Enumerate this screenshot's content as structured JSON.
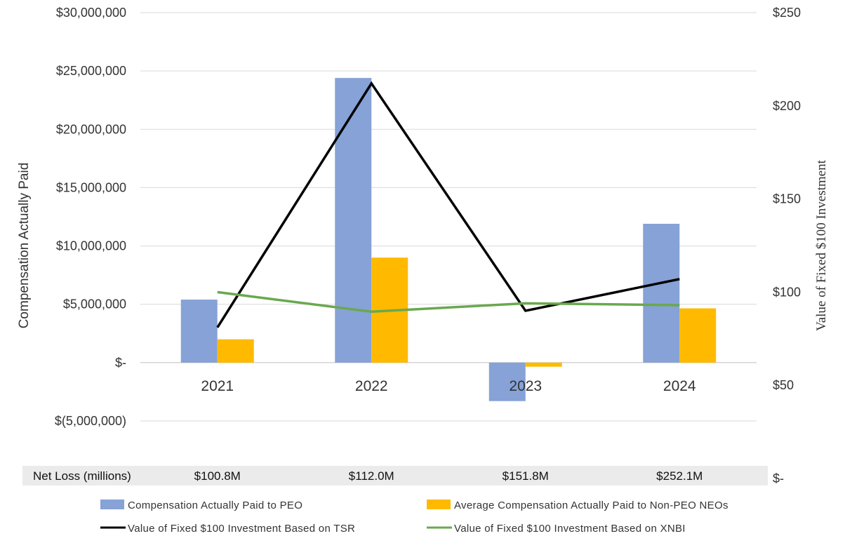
{
  "chart_data": {
    "type": "bar",
    "categories": [
      "2021",
      "2022",
      "2023",
      "2024"
    ],
    "ylabel": "Compensation Actually Paid",
    "y2label": "Value of Fixed $100 Investment",
    "ylim": [
      -5000000,
      30000000
    ],
    "y2lim": [
      0,
      250
    ],
    "y_ticks": [
      30000000,
      25000000,
      20000000,
      15000000,
      10000000,
      5000000,
      0,
      -5000000
    ],
    "y_tick_labels": [
      "$30,000,000",
      "$25,000,000",
      "$20,000,000",
      "$15,000,000",
      "$10,000,000",
      "$5,000,000",
      "$-",
      "$(5,000,000)"
    ],
    "y2_ticks": [
      250,
      200,
      150,
      100,
      50,
      0
    ],
    "y2_tick_labels": [
      "$250",
      "$200",
      "$150",
      "$100",
      "$50",
      "$-"
    ],
    "grid": true,
    "legend_position": "bottom",
    "bar_series": [
      {
        "name": "Compensation Actually Paid to PEO",
        "color": "#86A2D6",
        "values": [
          5400000,
          24400000,
          -3300000,
          11900000
        ]
      },
      {
        "name": "Average Compensation Actually Paid to Non-PEO NEOs",
        "color": "#FFBA00",
        "values": [
          2000000,
          9000000,
          -350000,
          4650000
        ]
      }
    ],
    "line_series": [
      {
        "name": "Value of Fixed $100 Investment Based on TSR",
        "color": "#000000",
        "axis": "secondary",
        "values": [
          81,
          212,
          90,
          107
        ]
      },
      {
        "name": "Value of Fixed $100 Investment Based on XNBI",
        "color": "#6AA84F",
        "axis": "secondary",
        "values": [
          100,
          89.5,
          94,
          93
        ]
      }
    ],
    "net_loss": {
      "label": "Net Loss (millions)",
      "values": [
        "$100.8M",
        "$112.0M",
        "$151.8M",
        "$252.1M"
      ]
    }
  }
}
